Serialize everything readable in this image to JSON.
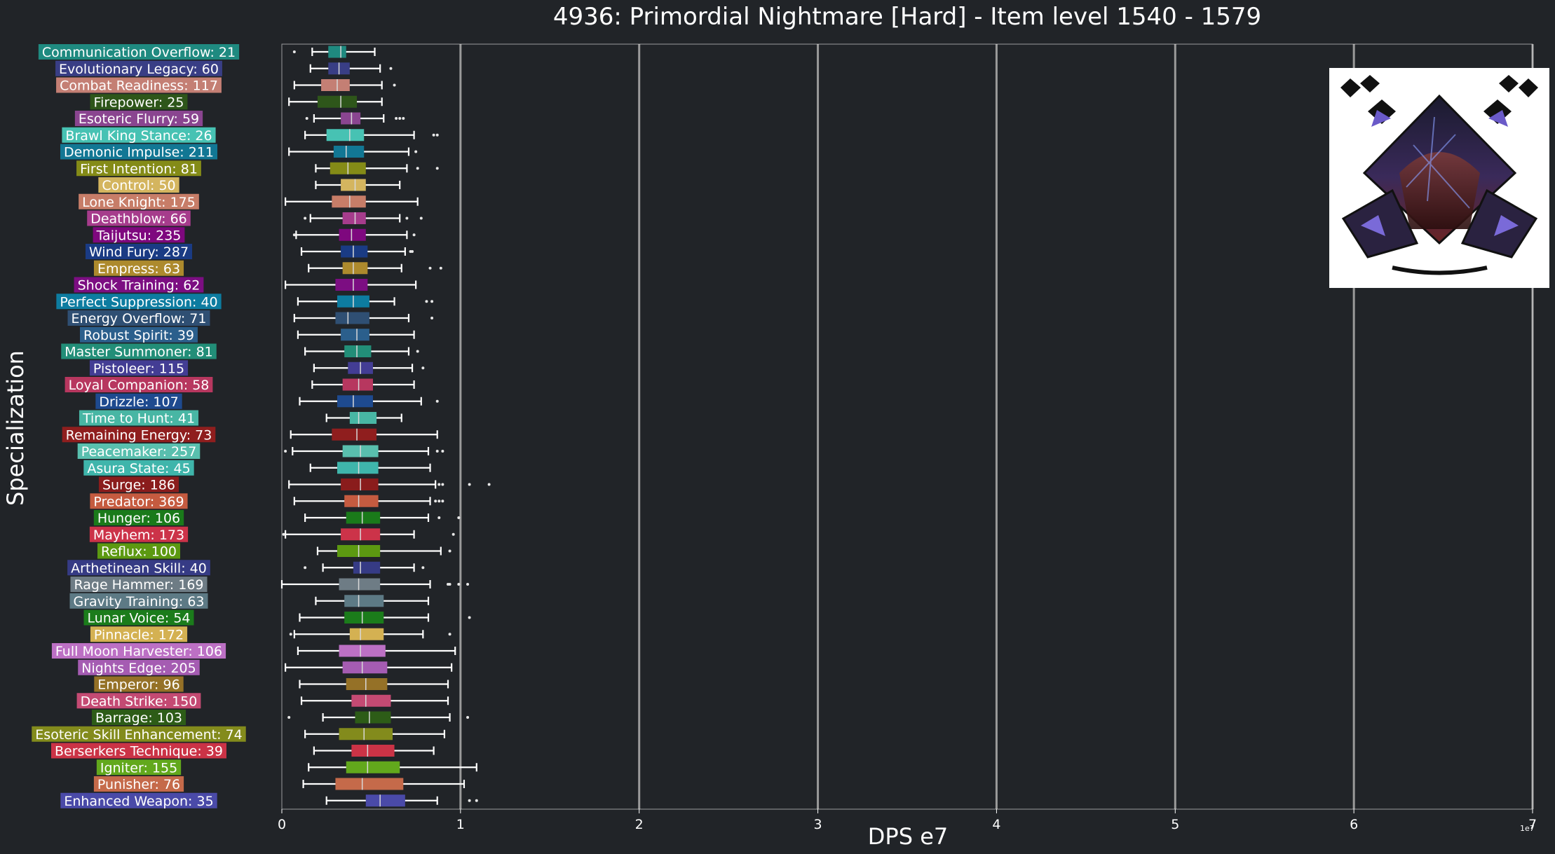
{
  "chart_data": {
    "type": "boxplot",
    "orientation": "horizontal",
    "title": "4936: Primordial Nightmare [Hard] - Item level 1540 - 1579",
    "xlabel": "DPS e7",
    "ylabel": "Specialization",
    "x_scale_note": "1e7",
    "xlim": [
      0,
      7
    ],
    "xticks": [
      "0",
      "1",
      "2",
      "3",
      "4",
      "5",
      "6",
      "7"
    ],
    "grid": "vertical",
    "whisker_color": "#ffffff",
    "series": [
      {
        "label": "Communication Overflow: 21",
        "color": "#1f8a80",
        "whisker_low": 0.17,
        "q1": 0.26,
        "median": 0.33,
        "q3": 0.36,
        "whisker_high": 0.52,
        "outliers": [
          0.07
        ]
      },
      {
        "label": "Evolutionary Legacy: 60",
        "color": "#393e85",
        "whisker_low": 0.16,
        "q1": 0.26,
        "median": 0.32,
        "q3": 0.38,
        "whisker_high": 0.55,
        "outliers": [
          0.61
        ]
      },
      {
        "label": "Combat Readiness: 117",
        "color": "#c47f74",
        "whisker_low": 0.07,
        "q1": 0.22,
        "median": 0.31,
        "q3": 0.38,
        "whisker_high": 0.56,
        "outliers": [
          0.63
        ]
      },
      {
        "label": "Firepower: 25",
        "color": "#2e561a",
        "whisker_low": 0.04,
        "q1": 0.2,
        "median": 0.33,
        "q3": 0.42,
        "whisker_high": 0.56,
        "outliers": []
      },
      {
        "label": "Esoteric Flurry: 59",
        "color": "#8a4590",
        "whisker_low": 0.18,
        "q1": 0.33,
        "median": 0.39,
        "q3": 0.44,
        "whisker_high": 0.57,
        "outliers": [
          0.14,
          0.64,
          0.66,
          0.68
        ]
      },
      {
        "label": "Brawl King Stance: 26",
        "color": "#47c2b3",
        "whisker_low": 0.13,
        "q1": 0.25,
        "median": 0.38,
        "q3": 0.46,
        "whisker_high": 0.74,
        "outliers": [
          0.85,
          0.87
        ]
      },
      {
        "label": "Demonic Impulse: 211",
        "color": "#127794",
        "whisker_low": 0.04,
        "q1": 0.29,
        "median": 0.36,
        "q3": 0.46,
        "whisker_high": 0.71,
        "outliers": [
          0.75
        ]
      },
      {
        "label": "First Intention: 81",
        "color": "#848b17",
        "whisker_low": 0.19,
        "q1": 0.27,
        "median": 0.37,
        "q3": 0.47,
        "whisker_high": 0.7,
        "outliers": [
          0.76,
          0.87
        ]
      },
      {
        "label": "Control: 50",
        "color": "#d4b55f",
        "whisker_low": 0.19,
        "q1": 0.33,
        "median": 0.41,
        "q3": 0.47,
        "whisker_high": 0.66,
        "outliers": []
      },
      {
        "label": "Lone Knight: 175",
        "color": "#c77d68",
        "whisker_low": 0.02,
        "q1": 0.28,
        "median": 0.38,
        "q3": 0.47,
        "whisker_high": 0.76,
        "outliers": []
      },
      {
        "label": "Deathblow: 66",
        "color": "#a63c8c",
        "whisker_low": 0.16,
        "q1": 0.34,
        "median": 0.41,
        "q3": 0.47,
        "whisker_high": 0.66,
        "outliers": [
          0.13,
          0.7,
          0.78
        ]
      },
      {
        "label": "Taijutsu: 235",
        "color": "#7e087e",
        "whisker_low": 0.08,
        "q1": 0.32,
        "median": 0.39,
        "q3": 0.47,
        "whisker_high": 0.7,
        "outliers": [
          0.07,
          0.74
        ]
      },
      {
        "label": "Wind Fury: 287",
        "color": "#1a3b84",
        "whisker_low": 0.11,
        "q1": 0.33,
        "median": 0.4,
        "q3": 0.48,
        "whisker_high": 0.69,
        "outliers": [
          0.72,
          0.73
        ]
      },
      {
        "label": "Empress: 63",
        "color": "#ad8a2d",
        "whisker_low": 0.15,
        "q1": 0.34,
        "median": 0.4,
        "q3": 0.48,
        "whisker_high": 0.67,
        "outliers": [
          0.83,
          0.89
        ]
      },
      {
        "label": "Shock Training: 62",
        "color": "#7c0e82",
        "whisker_low": 0.02,
        "q1": 0.3,
        "median": 0.4,
        "q3": 0.48,
        "whisker_high": 0.75,
        "outliers": []
      },
      {
        "label": "Perfect Suppression: 40",
        "color": "#0d7ca0",
        "whisker_low": 0.09,
        "q1": 0.31,
        "median": 0.4,
        "q3": 0.49,
        "whisker_high": 0.63,
        "outliers": [
          0.81,
          0.84
        ]
      },
      {
        "label": "Energy Overflow: 71",
        "color": "#2f4f73",
        "whisker_low": 0.07,
        "q1": 0.3,
        "median": 0.37,
        "q3": 0.49,
        "whisker_high": 0.71,
        "outliers": [
          0.84
        ]
      },
      {
        "label": "Robust Spirit: 39",
        "color": "#2b5f8c",
        "whisker_low": 0.09,
        "q1": 0.33,
        "median": 0.42,
        "q3": 0.49,
        "whisker_high": 0.74,
        "outliers": []
      },
      {
        "label": "Master Summoner: 81",
        "color": "#228e78",
        "whisker_low": 0.13,
        "q1": 0.35,
        "median": 0.42,
        "q3": 0.5,
        "whisker_high": 0.71,
        "outliers": [
          0.76
        ]
      },
      {
        "label": "Pistoleer: 115",
        "color": "#433d94",
        "whisker_low": 0.18,
        "q1": 0.37,
        "median": 0.44,
        "q3": 0.51,
        "whisker_high": 0.73,
        "outliers": [
          0.79
        ]
      },
      {
        "label": "Loyal Companion: 58",
        "color": "#b7375f",
        "whisker_low": 0.17,
        "q1": 0.34,
        "median": 0.43,
        "q3": 0.51,
        "whisker_high": 0.74,
        "outliers": []
      },
      {
        "label": "Drizzle: 107",
        "color": "#1e4a8f",
        "whisker_low": 0.1,
        "q1": 0.31,
        "median": 0.4,
        "q3": 0.51,
        "whisker_high": 0.78,
        "outliers": [
          0.87
        ]
      },
      {
        "label": "Time to Hunt: 41",
        "color": "#48b6a4",
        "whisker_low": 0.25,
        "q1": 0.38,
        "median": 0.43,
        "q3": 0.53,
        "whisker_high": 0.67,
        "outliers": []
      },
      {
        "label": "Remaining Energy: 73",
        "color": "#8f1e1e",
        "whisker_low": 0.05,
        "q1": 0.28,
        "median": 0.42,
        "q3": 0.53,
        "whisker_high": 0.87,
        "outliers": []
      },
      {
        "label": "Peacemaker: 257",
        "color": "#59bfae",
        "whisker_low": 0.06,
        "q1": 0.34,
        "median": 0.44,
        "q3": 0.54,
        "whisker_high": 0.82,
        "outliers": [
          0.02,
          0.87,
          0.9
        ]
      },
      {
        "label": "Asura State: 45",
        "color": "#3fb5ab",
        "whisker_low": 0.16,
        "q1": 0.31,
        "median": 0.43,
        "q3": 0.54,
        "whisker_high": 0.83,
        "outliers": []
      },
      {
        "label": "Surge: 186",
        "color": "#8a1c1c",
        "whisker_low": 0.04,
        "q1": 0.33,
        "median": 0.44,
        "q3": 0.54,
        "whisker_high": 0.86,
        "outliers": [
          0.88,
          0.9,
          1.05,
          1.16
        ]
      },
      {
        "label": "Predator: 369",
        "color": "#c55b40",
        "whisker_low": 0.07,
        "q1": 0.35,
        "median": 0.43,
        "q3": 0.54,
        "whisker_high": 0.83,
        "outliers": [
          0.86,
          0.88,
          0.9
        ]
      },
      {
        "label": "Hunger: 106",
        "color": "#1a7a1a",
        "whisker_low": 0.13,
        "q1": 0.36,
        "median": 0.45,
        "q3": 0.55,
        "whisker_high": 0.82,
        "outliers": [
          0.88,
          0.99
        ]
      },
      {
        "label": "Mayhem: 173",
        "color": "#cc3349",
        "whisker_low": 0.02,
        "q1": 0.33,
        "median": 0.44,
        "q3": 0.55,
        "whisker_high": 0.74,
        "outliers": [
          0.01,
          0.96
        ]
      },
      {
        "label": "Reflux: 100",
        "color": "#5c9911",
        "whisker_low": 0.2,
        "q1": 0.31,
        "median": 0.43,
        "q3": 0.55,
        "whisker_high": 0.89,
        "outliers": [
          0.94
        ]
      },
      {
        "label": "Arthetinean Skill: 40",
        "color": "#363b85",
        "whisker_low": 0.23,
        "q1": 0.4,
        "median": 0.44,
        "q3": 0.55,
        "whisker_high": 0.74,
        "outliers": [
          0.13,
          0.79
        ]
      },
      {
        "label": "Rage Hammer: 169",
        "color": "#6e7c85",
        "whisker_low": 0.0,
        "q1": 0.32,
        "median": 0.43,
        "q3": 0.55,
        "whisker_high": 0.83,
        "outliers": [
          0.93,
          0.94,
          0.99,
          1.04
        ]
      },
      {
        "label": "Gravity Training: 63",
        "color": "#5d7a85",
        "whisker_low": 0.19,
        "q1": 0.35,
        "median": 0.43,
        "q3": 0.57,
        "whisker_high": 0.82,
        "outliers": []
      },
      {
        "label": "Lunar Voice: 54",
        "color": "#1b7c1b",
        "whisker_low": 0.1,
        "q1": 0.35,
        "median": 0.45,
        "q3": 0.57,
        "whisker_high": 0.82,
        "outliers": [
          1.05
        ]
      },
      {
        "label": "Pinnacle: 172",
        "color": "#d4b152",
        "whisker_low": 0.07,
        "q1": 0.38,
        "median": 0.44,
        "q3": 0.57,
        "whisker_high": 0.79,
        "outliers": [
          0.05,
          0.94
        ]
      },
      {
        "label": "Full Moon Harvester: 106",
        "color": "#bc70c4",
        "whisker_low": 0.09,
        "q1": 0.32,
        "median": 0.44,
        "q3": 0.58,
        "whisker_high": 0.97,
        "outliers": []
      },
      {
        "label": "Nights Edge: 205",
        "color": "#a55cb2",
        "whisker_low": 0.02,
        "q1": 0.34,
        "median": 0.45,
        "q3": 0.59,
        "whisker_high": 0.95,
        "outliers": []
      },
      {
        "label": "Emperor: 96",
        "color": "#957127",
        "whisker_low": 0.1,
        "q1": 0.36,
        "median": 0.47,
        "q3": 0.59,
        "whisker_high": 0.93,
        "outliers": []
      },
      {
        "label": "Death Strike: 150",
        "color": "#c44a73",
        "whisker_low": 0.11,
        "q1": 0.39,
        "median": 0.47,
        "q3": 0.61,
        "whisker_high": 0.93,
        "outliers": []
      },
      {
        "label": "Barrage: 103",
        "color": "#2d5c17",
        "whisker_low": 0.23,
        "q1": 0.41,
        "median": 0.49,
        "q3": 0.61,
        "whisker_high": 0.94,
        "outliers": [
          0.04,
          1.04
        ]
      },
      {
        "label": "Esoteric Skill Enhancement: 74",
        "color": "#838b1c",
        "whisker_low": 0.13,
        "q1": 0.32,
        "median": 0.46,
        "q3": 0.62,
        "whisker_high": 0.91,
        "outliers": []
      },
      {
        "label": "Berserkers Technique: 39",
        "color": "#cb3346",
        "whisker_low": 0.18,
        "q1": 0.39,
        "median": 0.48,
        "q3": 0.63,
        "whisker_high": 0.85,
        "outliers": []
      },
      {
        "label": "Igniter: 155",
        "color": "#62a81c",
        "whisker_low": 0.15,
        "q1": 0.36,
        "median": 0.48,
        "q3": 0.66,
        "whisker_high": 1.09,
        "outliers": []
      },
      {
        "label": "Punisher: 76",
        "color": "#c56a4a",
        "whisker_low": 0.12,
        "q1": 0.3,
        "median": 0.45,
        "q3": 0.68,
        "whisker_high": 1.02,
        "outliers": []
      },
      {
        "label": "Enhanced Weapon: 35",
        "color": "#4a4aa8",
        "whisker_low": 0.25,
        "q1": 0.47,
        "median": 0.55,
        "q3": 0.69,
        "whisker_high": 0.87,
        "outliers": [
          1.05,
          1.09
        ]
      }
    ]
  }
}
